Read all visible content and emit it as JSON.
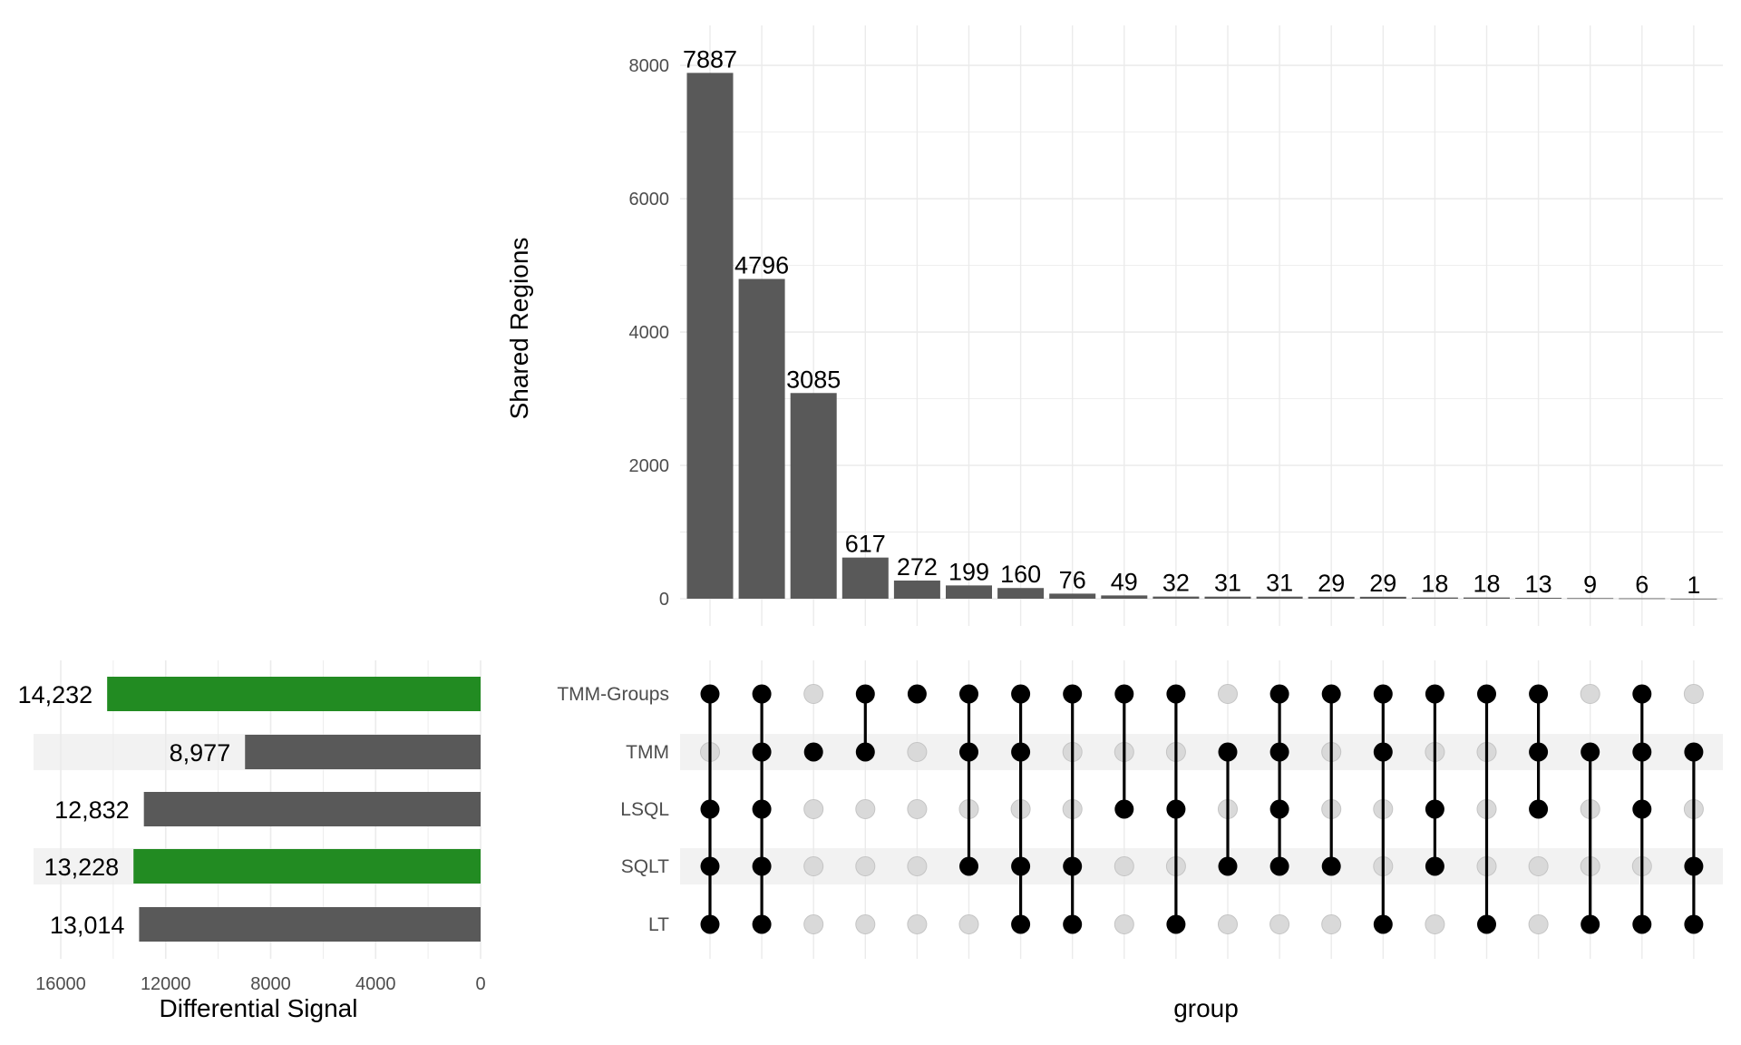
{
  "colors": {
    "bar": "#595959",
    "highlight": "#228b22",
    "grid": "#ebebeb",
    "stripe": "#f2f2f2",
    "dot_on": "#000000",
    "dot_off": "#d9d9d9",
    "text": "#000000",
    "tick": "#4d4d4d"
  },
  "chart_data": [
    {
      "name": "intersection-sizes",
      "type": "bar",
      "ylabel": "Shared Regions",
      "ylim": [
        0,
        8300
      ],
      "y_ticks": [
        0,
        2000,
        4000,
        6000,
        8000
      ],
      "y_tick_labels": [
        "0",
        "2000",
        "4000",
        "6000",
        "8000"
      ],
      "values": [
        7887,
        4796,
        3085,
        617,
        272,
        199,
        160,
        76,
        49,
        32,
        31,
        31,
        29,
        29,
        18,
        18,
        13,
        9,
        6,
        1
      ],
      "labels": [
        "7887",
        "4796",
        "3085",
        "617",
        "272",
        "199",
        "160",
        "76",
        "49",
        "32",
        "31",
        "31",
        "29",
        "29",
        "18",
        "18",
        "13",
        "9",
        "6",
        "1"
      ]
    },
    {
      "name": "intersection-matrix",
      "type": "matrix",
      "xlabel": "group",
      "sets": [
        "TMM-Groups",
        "TMM",
        "LSQL",
        "SQLT",
        "LT"
      ],
      "membership": [
        [
          1,
          0,
          1,
          1,
          1
        ],
        [
          1,
          1,
          1,
          1,
          1
        ],
        [
          0,
          1,
          0,
          0,
          0
        ],
        [
          1,
          1,
          0,
          0,
          0
        ],
        [
          1,
          0,
          0,
          0,
          0
        ],
        [
          1,
          1,
          0,
          1,
          0
        ],
        [
          1,
          1,
          0,
          1,
          1
        ],
        [
          1,
          0,
          0,
          1,
          1
        ],
        [
          1,
          0,
          1,
          0,
          0
        ],
        [
          1,
          0,
          1,
          0,
          1
        ],
        [
          0,
          1,
          0,
          1,
          0
        ],
        [
          1,
          1,
          1,
          1,
          0
        ],
        [
          1,
          0,
          0,
          1,
          0
        ],
        [
          1,
          1,
          0,
          0,
          1
        ],
        [
          1,
          0,
          1,
          1,
          0
        ],
        [
          1,
          0,
          0,
          0,
          1
        ],
        [
          1,
          1,
          1,
          0,
          0
        ],
        [
          0,
          1,
          0,
          0,
          1
        ],
        [
          1,
          1,
          1,
          0,
          1
        ],
        [
          0,
          1,
          0,
          1,
          1
        ]
      ]
    },
    {
      "name": "set-sizes",
      "type": "bar",
      "orientation": "horizontal-reversed",
      "xlabel": "Differential Signal",
      "xlim": [
        0,
        17000
      ],
      "x_ticks": [
        16000,
        12000,
        8000,
        4000,
        0
      ],
      "x_tick_labels": [
        "16000",
        "12000",
        "8000",
        "4000",
        "0"
      ],
      "categories": [
        "TMM-Groups",
        "TMM",
        "LSQL",
        "SQLT",
        "LT"
      ],
      "values": [
        14232,
        8977,
        12832,
        13228,
        13014
      ],
      "labels": [
        "14,232",
        "8,977",
        "12,832",
        "13,228",
        "13,014"
      ],
      "highlighted": [
        true,
        false,
        false,
        true,
        false
      ]
    }
  ]
}
